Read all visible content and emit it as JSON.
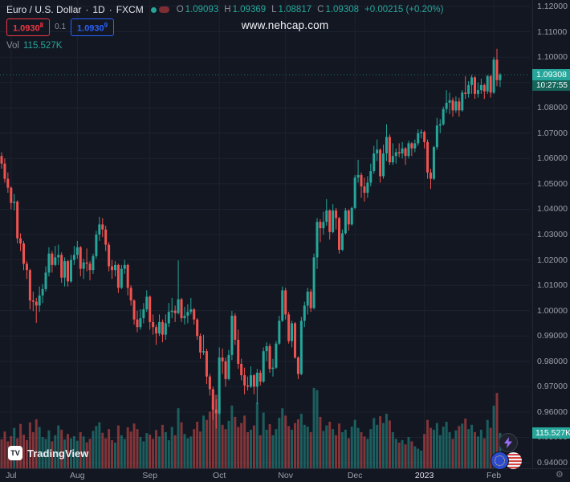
{
  "header": {
    "symbol_title": "Euro / U.S. Dollar",
    "dot1": "·",
    "interval": "1D",
    "dot2": "·",
    "exchange": "FXCM",
    "o_label": "O",
    "o_value": "1.09093",
    "h_label": "H",
    "h_value": "1.09369",
    "l_label": "L",
    "l_value": "1.08817",
    "c_label": "C",
    "c_value": "1.09308",
    "change": "+0.00215 (+0.20%)",
    "bid": "1.0930",
    "bid_sup": "8",
    "spread": "0.1",
    "ask": "1.0930",
    "ask_sup": "9",
    "vol_label": "Vol",
    "vol_value": "115.527K"
  },
  "watermark": "www.nehcap.com",
  "price_label": {
    "value": "1.09308",
    "countdown": "10:27:55"
  },
  "volume_axis_label": "115.527K",
  "logo": {
    "mark": "TV",
    "text": "TradingView"
  },
  "icons": {
    "axis_corner": "⚙",
    "bottom_right": [
      "lightning-icon",
      "eur-usd-flags-icon"
    ]
  },
  "colors": {
    "background": "#131722",
    "grid": "#1d2230",
    "up": "#26a69a",
    "down": "#ef5350",
    "vol_up": "rgba(38,166,154,0.5)",
    "vol_down": "rgba(239,83,80,0.5)",
    "bid_red": "#f23645",
    "ask_blue": "#2962ff",
    "label_green": "#26a69a"
  },
  "price_axis": {
    "ticks": [
      "1.12000",
      "1.11000",
      "1.10000",
      "1.09000",
      "1.08000",
      "1.07000",
      "1.06000",
      "1.05000",
      "1.04000",
      "1.03000",
      "1.02000",
      "1.01000",
      "1.00000",
      "0.99000",
      "0.98000",
      "0.97000",
      "0.96000",
      "0.95000",
      "0.94000"
    ]
  },
  "time_axis": {
    "ticks": [
      {
        "label": "Jul",
        "index": 3
      },
      {
        "label": "Aug",
        "index": 24
      },
      {
        "label": "Sep",
        "index": 47
      },
      {
        "label": "Oct",
        "index": 69
      },
      {
        "label": "Nov",
        "index": 90
      },
      {
        "label": "Dec",
        "index": 112
      },
      {
        "label": "2023",
        "index": 134,
        "major": true
      },
      {
        "label": "Feb",
        "index": 156
      }
    ]
  },
  "chart_data": {
    "type": "candlestick",
    "title": "Euro / U.S. Dollar",
    "symbol": "EURUSD",
    "interval": "1D",
    "exchange": "FXCM",
    "ylim": [
      0.94,
      1.12
    ],
    "x_tick_labels": [
      "Jul",
      "Aug",
      "Sep",
      "Oct",
      "Nov",
      "Dec",
      "2023",
      "Feb"
    ],
    "last_ohlc": {
      "open": 1.09093,
      "high": 1.09369,
      "low": 1.08817,
      "close": 1.09308,
      "change": 0.00215,
      "change_pct": 0.2
    },
    "last_volume_k": 115.527,
    "candles": [
      [
        1.061,
        1.0625,
        1.056,
        1.058
      ],
      [
        1.058,
        1.06,
        1.0505,
        1.052
      ],
      [
        1.052,
        1.0545,
        1.0465,
        1.0485
      ],
      [
        1.0485,
        1.049,
        1.04,
        1.0425
      ],
      [
        1.0425,
        1.046,
        1.0395,
        1.043
      ],
      [
        1.043,
        1.0435,
        1.0265,
        1.0285
      ],
      [
        1.0285,
        1.0305,
        1.0235,
        1.0265
      ],
      [
        1.0265,
        1.0275,
        1.016,
        1.0185
      ],
      [
        1.0185,
        1.0195,
        1.0125,
        1.016
      ],
      [
        1.016,
        1.0165,
        1.0005,
        1.004
      ],
      [
        1.004,
        1.0075,
        0.9998,
        1.0035
      ],
      [
        1.0035,
        1.005,
        0.9952,
        1.002
      ],
      [
        1.002,
        1.0095,
        0.9995,
        1.006
      ],
      [
        1.006,
        1.0105,
        1.003,
        1.0085
      ],
      [
        1.0085,
        1.0175,
        1.0075,
        1.015
      ],
      [
        1.015,
        1.025,
        1.0135,
        1.0225
      ],
      [
        1.0225,
        1.0235,
        1.015,
        1.018
      ],
      [
        1.018,
        1.0255,
        1.0175,
        1.021
      ],
      [
        1.021,
        1.026,
        1.018,
        1.022
      ],
      [
        1.022,
        1.023,
        1.011,
        1.013
      ],
      [
        1.013,
        1.021,
        1.0095,
        1.0195
      ],
      [
        1.0195,
        1.02,
        1.0095,
        1.0115
      ],
      [
        1.0115,
        1.022,
        1.011,
        1.02
      ],
      [
        1.02,
        1.0255,
        1.018,
        1.022
      ],
      [
        1.022,
        1.0275,
        1.0205,
        1.025
      ],
      [
        1.025,
        1.0255,
        1.0135,
        1.0165
      ],
      [
        1.0165,
        1.0205,
        1.0125,
        1.019
      ],
      [
        1.019,
        1.0245,
        1.0155,
        1.0185
      ],
      [
        1.0185,
        1.0195,
        1.012,
        1.016
      ],
      [
        1.016,
        1.0225,
        1.0145,
        1.0215
      ],
      [
        1.0215,
        1.0315,
        1.0205,
        1.03
      ],
      [
        1.03,
        1.037,
        1.0275,
        1.034
      ],
      [
        1.034,
        1.0365,
        1.029,
        1.032
      ],
      [
        1.032,
        1.0335,
        1.0235,
        1.026
      ],
      [
        1.026,
        1.027,
        1.0155,
        1.0175
      ],
      [
        1.0175,
        1.02,
        1.0125,
        1.016
      ],
      [
        1.016,
        1.0195,
        1.0135,
        1.018
      ],
      [
        1.018,
        1.0185,
        1.007,
        1.009
      ],
      [
        1.009,
        1.018,
        1.0085,
        1.0165
      ],
      [
        1.0165,
        1.02,
        1.0145,
        1.018
      ],
      [
        1.018,
        1.0185,
        1.006,
        1.009
      ],
      [
        1.009,
        1.01,
        1.002,
        1.004
      ],
      [
        1.004,
        1.0045,
        0.9945,
        0.9965
      ],
      [
        0.9965,
        1.0,
        0.9915,
        0.9935
      ],
      [
        0.9935,
        1.0005,
        0.9925,
        0.997
      ],
      [
        0.997,
        1.003,
        0.995,
        1.0005
      ],
      [
        1.0005,
        1.008,
        0.9995,
        1.0055
      ],
      [
        1.0055,
        1.006,
        0.9925,
        0.9955
      ],
      [
        0.9955,
        0.9985,
        0.9905,
        0.9935
      ],
      [
        0.9935,
        0.9945,
        0.9865,
        0.991
      ],
      [
        0.991,
        0.9985,
        0.99,
        0.9955
      ],
      [
        0.9955,
        0.9965,
        0.9875,
        0.9905
      ],
      [
        0.9905,
        0.9985,
        0.9885,
        0.995
      ],
      [
        0.995,
        1.003,
        0.9935,
        0.9995
      ],
      [
        0.9995,
        1.005,
        0.997,
        1.0
      ],
      [
        1.0,
        1.002,
        0.9955,
        0.999
      ],
      [
        0.999,
        1.0198,
        0.9985,
        1.0045
      ],
      [
        1.0045,
        1.005,
        0.9955,
        0.997
      ],
      [
        0.997,
        1.0015,
        0.9945,
        0.998
      ],
      [
        0.998,
        1.0025,
        0.995,
        0.9995
      ],
      [
        0.9995,
        1.005,
        0.9985,
        1.0005
      ],
      [
        1.0005,
        1.001,
        0.9945,
        0.9965
      ],
      [
        0.9965,
        0.997,
        0.9885,
        0.99
      ],
      [
        0.99,
        0.991,
        0.981,
        0.9835
      ],
      [
        0.9835,
        0.9905,
        0.9825,
        0.984
      ],
      [
        0.984,
        0.985,
        0.971,
        0.974
      ],
      [
        0.974,
        0.975,
        0.9665,
        0.969
      ],
      [
        0.969,
        0.97,
        0.957,
        0.961
      ],
      [
        0.961,
        0.965,
        0.9535,
        0.9595
      ],
      [
        0.9595,
        0.9855,
        0.959,
        0.9815
      ],
      [
        0.9815,
        0.985,
        0.975,
        0.98
      ],
      [
        0.98,
        0.9815,
        0.97,
        0.973
      ],
      [
        0.973,
        0.9845,
        0.9725,
        0.9825
      ],
      [
        0.9825,
        0.9999,
        0.9805,
        0.998
      ],
      [
        0.998,
        0.999,
        0.9865,
        0.9885
      ],
      [
        0.9885,
        0.9925,
        0.977,
        0.979
      ],
      [
        0.979,
        0.981,
        0.9725,
        0.9745
      ],
      [
        0.9745,
        0.9775,
        0.967,
        0.9705
      ],
      [
        0.9705,
        0.974,
        0.9685,
        0.97
      ],
      [
        0.97,
        0.978,
        0.9695,
        0.9745
      ],
      [
        0.9745,
        0.975,
        0.967,
        0.97
      ],
      [
        0.97,
        0.977,
        0.9632,
        0.9755
      ],
      [
        0.9755,
        0.9765,
        0.9705,
        0.972
      ],
      [
        0.972,
        0.9855,
        0.9715,
        0.984
      ],
      [
        0.984,
        0.9875,
        0.98,
        0.986
      ],
      [
        0.986,
        0.987,
        0.9755,
        0.977
      ],
      [
        0.977,
        0.981,
        0.974,
        0.9775
      ],
      [
        0.9775,
        0.988,
        0.977,
        0.987
      ],
      [
        0.987,
        0.998,
        0.9865,
        0.996
      ],
      [
        0.996,
        1.0095,
        0.9955,
        1.008
      ],
      [
        1.008,
        1.009,
        0.9965,
        0.9985
      ],
      [
        0.9985,
        0.9995,
        0.987,
        0.988
      ],
      [
        0.988,
        0.996,
        0.9855,
        0.995
      ],
      [
        0.995,
        0.9955,
        0.981,
        0.9815
      ],
      [
        0.9815,
        0.982,
        0.973,
        0.975
      ],
      [
        0.975,
        0.9975,
        0.9745,
        0.996
      ],
      [
        0.996,
        1.0035,
        0.9935,
        1.002
      ],
      [
        1.002,
        1.009,
        0.9985,
        1.0075
      ],
      [
        1.0075,
        1.0085,
        0.9995,
        1.001
      ],
      [
        1.001,
        1.0225,
        1.0005,
        1.021
      ],
      [
        1.021,
        1.0365,
        1.0165,
        1.035
      ],
      [
        1.035,
        1.036,
        1.027,
        1.0325
      ],
      [
        1.0325,
        1.039,
        1.03,
        1.035
      ],
      [
        1.035,
        1.044,
        1.0335,
        1.0395
      ],
      [
        1.0395,
        1.04,
        1.028,
        1.031
      ],
      [
        1.031,
        1.042,
        1.0305,
        1.0395
      ],
      [
        1.0395,
        1.0405,
        1.032,
        1.0365
      ],
      [
        1.0365,
        1.037,
        1.0225,
        1.024
      ],
      [
        1.024,
        1.032,
        1.0235,
        1.0305
      ],
      [
        1.0305,
        1.0405,
        1.03,
        1.0395
      ],
      [
        1.0395,
        1.04,
        1.0315,
        1.034
      ],
      [
        1.034,
        1.041,
        1.0335,
        1.0405
      ],
      [
        1.0405,
        1.0535,
        1.04,
        1.0525
      ],
      [
        1.0525,
        1.0595,
        1.0505,
        1.0535
      ],
      [
        1.0535,
        1.0545,
        1.0445,
        1.049
      ],
      [
        1.049,
        1.0525,
        1.043,
        1.0465
      ],
      [
        1.0465,
        1.053,
        1.0445,
        1.0505
      ],
      [
        1.0505,
        1.058,
        1.049,
        1.055
      ],
      [
        1.055,
        1.065,
        1.054,
        1.062
      ],
      [
        1.062,
        1.0675,
        1.059,
        1.0635
      ],
      [
        1.0635,
        1.064,
        1.0505,
        1.053
      ],
      [
        1.053,
        1.0655,
        1.052,
        1.062
      ],
      [
        1.062,
        1.0735,
        1.059,
        1.0685
      ],
      [
        1.0685,
        1.0695,
        1.0575,
        1.0585
      ],
      [
        1.0585,
        1.066,
        1.0575,
        1.061
      ],
      [
        1.061,
        1.064,
        1.058,
        1.0625
      ],
      [
        1.0625,
        1.066,
        1.0605,
        1.062
      ],
      [
        1.062,
        1.0665,
        1.06,
        1.064
      ],
      [
        1.064,
        1.0645,
        1.0575,
        1.061
      ],
      [
        1.061,
        1.067,
        1.06,
        1.066
      ],
      [
        1.066,
        1.0665,
        1.061,
        1.064
      ],
      [
        1.064,
        1.0675,
        1.0625,
        1.066
      ],
      [
        1.066,
        1.0715,
        1.065,
        1.07
      ],
      [
        1.07,
        1.0715,
        1.068,
        1.0705
      ],
      [
        1.0705,
        1.071,
        1.064,
        1.0665
      ],
      [
        1.0665,
        1.0675,
        1.052,
        1.0545
      ],
      [
        1.0545,
        1.056,
        1.048,
        1.052
      ],
      [
        1.052,
        1.065,
        1.0515,
        1.0645
      ],
      [
        1.0645,
        1.076,
        1.0635,
        1.073
      ],
      [
        1.073,
        1.0755,
        1.07,
        1.0735
      ],
      [
        1.0735,
        1.0805,
        1.073,
        1.0795
      ],
      [
        1.0795,
        1.087,
        1.078,
        1.082
      ],
      [
        1.082,
        1.086,
        1.0775,
        1.083
      ],
      [
        1.083,
        1.084,
        1.0765,
        1.079
      ],
      [
        1.079,
        1.0845,
        1.078,
        1.0825
      ],
      [
        1.0825,
        1.084,
        1.0765,
        1.079
      ],
      [
        1.079,
        1.087,
        1.0785,
        1.086
      ],
      [
        1.086,
        1.0925,
        1.0835,
        1.0855
      ],
      [
        1.0855,
        1.0905,
        1.084,
        1.089
      ],
      [
        1.089,
        1.093,
        1.0855,
        1.092
      ],
      [
        1.092,
        1.0925,
        1.0835,
        1.0855
      ],
      [
        1.0855,
        1.09,
        1.084,
        1.087
      ],
      [
        1.087,
        1.0915,
        1.0855,
        1.089
      ],
      [
        1.089,
        1.0895,
        1.0835,
        1.0865
      ],
      [
        1.0865,
        1.093,
        1.0855,
        1.0925
      ],
      [
        1.0925,
        1.093,
        1.084,
        1.086
      ],
      [
        1.086,
        1.1,
        1.0855,
        1.099
      ],
      [
        1.099,
        1.1033,
        1.0885,
        1.0909
      ],
      [
        1.09093,
        1.09369,
        1.08817,
        1.09308
      ]
    ],
    "volumes_k": [
      95,
      120,
      88,
      105,
      132,
      98,
      145,
      110,
      92,
      150,
      118,
      160,
      135,
      102,
      96,
      124,
      88,
      108,
      140,
      126,
      94,
      112,
      98,
      105,
      90,
      118,
      104,
      85,
      96,
      122,
      138,
      150,
      116,
      98,
      128,
      92,
      84,
      140,
      108,
      96,
      134,
      120,
      146,
      128,
      102,
      88,
      115,
      110,
      96,
      125,
      104,
      142,
      118,
      92,
      135,
      108,
      196,
      150,
      112,
      98,
      104,
      128,
      152,
      120,
      172,
      158,
      185,
      210,
      240,
      230,
      142,
      128,
      155,
      205,
      168,
      135,
      148,
      172,
      118,
      126,
      140,
      215,
      108,
      182,
      126,
      144,
      108,
      128,
      165,
      196,
      172,
      138,
      126,
      148,
      160,
      178,
      142,
      136,
      118,
      262,
      255,
      168,
      122,
      140,
      152,
      128,
      108,
      146,
      118,
      126,
      98,
      136,
      158,
      132,
      118,
      104,
      96,
      128,
      164,
      142,
      170,
      148,
      178,
      156,
      118,
      96,
      84,
      92,
      78,
      102,
      88,
      72,
      64,
      58,
      112,
      158,
      132,
      126,
      148,
      108,
      136,
      152,
      118,
      96,
      124,
      138,
      146,
      162,
      128,
      142,
      118,
      104,
      126,
      98,
      158,
      132,
      204,
      246,
      115.527
    ]
  }
}
